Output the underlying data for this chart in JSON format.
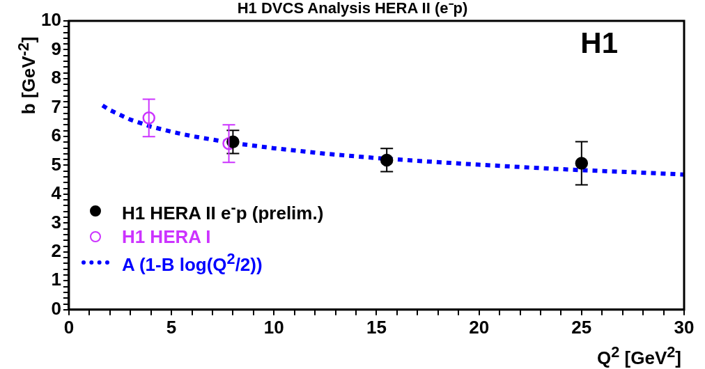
{
  "chart_data": {
    "type": "scatter",
    "title": "H1 DVCS Analysis HERA II (e⁻p)",
    "xlabel": "Q$^{2}$ [GeV$^{2}$]",
    "ylabel": "b [GeV$^{-2}$]",
    "annotations": [
      "H1"
    ],
    "xlim": [
      0,
      30
    ],
    "ylim": [
      0,
      10
    ],
    "xticks": [
      0,
      {
        "value": 1,
        "label": null
      },
      {
        "value": 2,
        "label": null
      },
      {
        "value": 3,
        "label": null
      },
      {
        "value": 4,
        "label": null
      },
      5,
      {
        "value": 6,
        "label": null
      },
      {
        "value": 7,
        "label": null
      },
      {
        "value": 8,
        "label": null
      },
      {
        "value": 9,
        "label": null
      },
      10,
      {
        "value": 11,
        "label": null
      },
      {
        "value": 12,
        "label": null
      },
      {
        "value": 13,
        "label": null
      },
      {
        "value": 14,
        "label": null
      },
      15,
      {
        "value": 16,
        "label": null
      },
      {
        "value": 17,
        "label": null
      },
      {
        "value": 18,
        "label": null
      },
      {
        "value": 19,
        "label": null
      },
      20,
      {
        "value": 21,
        "label": null
      },
      {
        "value": 22,
        "label": null
      },
      {
        "value": 23,
        "label": null
      },
      {
        "value": 24,
        "label": null
      },
      25,
      {
        "value": 26,
        "label": null
      },
      {
        "value": 27,
        "label": null
      },
      {
        "value": 28,
        "label": null
      },
      {
        "value": 29,
        "label": null
      },
      30
    ],
    "yticks": [
      0,
      {
        "value": 0.2,
        "label": null
      },
      {
        "value": 0.4,
        "label": null
      },
      {
        "value": 0.6,
        "label": null
      },
      {
        "value": 0.8,
        "label": null
      },
      1,
      {
        "value": 1.2,
        "label": null
      },
      {
        "value": 1.4,
        "label": null
      },
      {
        "value": 1.6,
        "label": null
      },
      {
        "value": 1.8,
        "label": null
      },
      2,
      {
        "value": 2.2,
        "label": null
      },
      {
        "value": 2.4,
        "label": null
      },
      {
        "value": 2.6,
        "label": null
      },
      {
        "value": 2.8,
        "label": null
      },
      3,
      {
        "value": 3.2,
        "label": null
      },
      {
        "value": 3.4,
        "label": null
      },
      {
        "value": 3.6,
        "label": null
      },
      {
        "value": 3.8,
        "label": null
      },
      4,
      {
        "value": 4.2,
        "label": null
      },
      {
        "value": 4.4,
        "label": null
      },
      {
        "value": 4.6,
        "label": null
      },
      {
        "value": 4.8,
        "label": null
      },
      5,
      {
        "value": 5.2,
        "label": null
      },
      {
        "value": 5.4,
        "label": null
      },
      {
        "value": 5.6,
        "label": null
      },
      {
        "value": 5.8,
        "label": null
      },
      6,
      {
        "value": 6.2,
        "label": null
      },
      {
        "value": 6.4,
        "label": null
      },
      {
        "value": 6.6,
        "label": null
      },
      {
        "value": 6.8,
        "label": null
      },
      7,
      {
        "value": 7.2,
        "label": null
      },
      {
        "value": 7.4,
        "label": null
      },
      {
        "value": 7.6,
        "label": null
      },
      {
        "value": 7.8,
        "label": null
      },
      8,
      {
        "value": 8.2,
        "label": null
      },
      {
        "value": 8.4,
        "label": null
      },
      {
        "value": 8.6,
        "label": null
      },
      {
        "value": 8.8,
        "label": null
      },
      9,
      {
        "value": 9.2,
        "label": null
      },
      {
        "value": 9.4,
        "label": null
      },
      {
        "value": 9.6,
        "label": null
      },
      {
        "value": 9.8,
        "label": null
      },
      10
    ],
    "grid": false,
    "legend": "bottom left",
    "series": [
      {
        "name": "H1 HERA II e$^{-}$p (prelim.)",
        "marker": "circle",
        "color": "#000000",
        "x": [
          8.0,
          15.5,
          25.0
        ],
        "values": [
          5.81,
          5.18,
          5.07
        ],
        "errors": [
          0.4,
          0.4,
          0.75
        ]
      },
      {
        "name": "H1 HERA I",
        "marker": "circle_open",
        "color": "#cc33ff",
        "x": [
          3.9,
          7.8
        ],
        "values": [
          6.64,
          5.75
        ],
        "errors": [
          0.65,
          0.65
        ]
      },
      {
        "name": "A (1-B log(Q$^{2}$/2))",
        "type": "line",
        "marker": "none",
        "line_style": "dotted",
        "color": "#0000ff",
        "x": [
          1.64,
          2,
          3,
          4,
          5,
          6,
          8,
          10,
          12.5,
          15,
          17.5,
          20,
          22.5,
          25,
          27.5,
          30
        ],
        "values": [
          7.07,
          6.91,
          6.58,
          6.34,
          6.16,
          6.01,
          5.77,
          5.59,
          5.4,
          5.25,
          5.13,
          5.02,
          4.92,
          4.83,
          4.76,
          4.68
        ]
      }
    ]
  }
}
